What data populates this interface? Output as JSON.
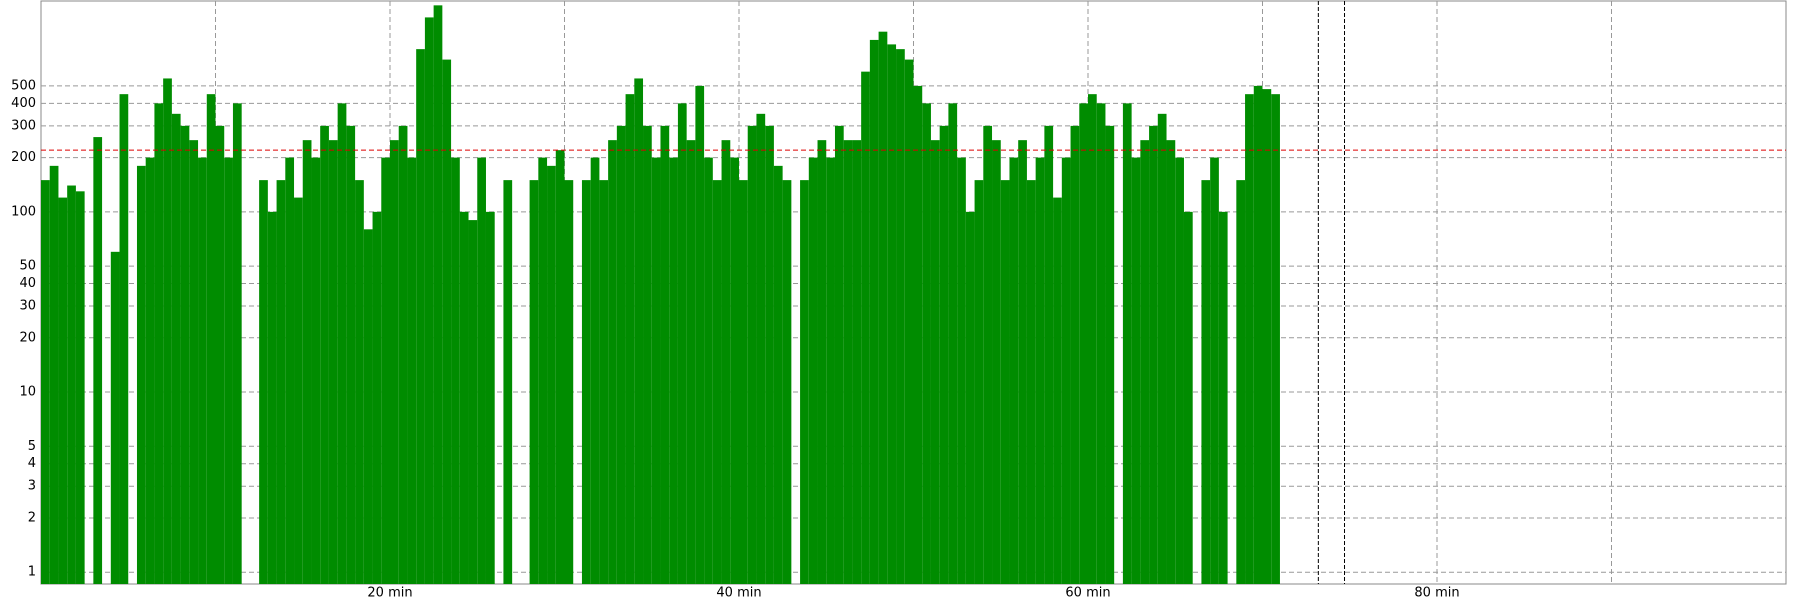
{
  "chart_data": {
    "type": "bar",
    "color": "#008c00",
    "log_scale": true,
    "grid": true,
    "xlim": [
      0,
      100
    ],
    "ylim": [
      0.86,
      1480
    ],
    "xticks": [
      {
        "value": 20,
        "label": "20 min"
      },
      {
        "value": 40,
        "label": "40 min"
      },
      {
        "value": 60,
        "label": "60 min"
      },
      {
        "value": 80,
        "label": "80 min"
      }
    ],
    "x_minor_gridlines": [
      10,
      30,
      50,
      70,
      90
    ],
    "yticks": [
      1,
      2,
      3,
      4,
      5,
      10,
      20,
      30,
      40,
      50,
      100,
      200,
      300,
      400,
      500
    ],
    "threshold": 220,
    "threshold_color": "#dd0000",
    "markers": [
      73.2,
      74.7
    ],
    "x": [
      0,
      0.5,
      1,
      1.5,
      2,
      2.5,
      3,
      3.5,
      4,
      4.5,
      5,
      5.5,
      6,
      6.5,
      7,
      7.5,
      8,
      8.5,
      9,
      9.5,
      10,
      10.5,
      11,
      11.5,
      12,
      12.5,
      13,
      13.5,
      14,
      14.5,
      15,
      15.5,
      16,
      16.5,
      17,
      17.5,
      18,
      18.5,
      19,
      19.5,
      20,
      20.5,
      21,
      21.5,
      22,
      22.5,
      23,
      23.5,
      24,
      24.5,
      25,
      25.5,
      26,
      26.5,
      27,
      27.5,
      28,
      28.5,
      29,
      29.5,
      30,
      30.5,
      31,
      31.5,
      32,
      32.5,
      33,
      33.5,
      34,
      34.5,
      35,
      35.5,
      36,
      36.5,
      37,
      37.5,
      38,
      38.5,
      39,
      39.5,
      40,
      40.5,
      41,
      41.5,
      42,
      42.5,
      43,
      43.5,
      44,
      44.5,
      45,
      45.5,
      46,
      46.5,
      47,
      47.5,
      48,
      48.5,
      49,
      49.5,
      50,
      50.5,
      51,
      51.5,
      52,
      52.5,
      53,
      53.5,
      54,
      54.5,
      55,
      55.5,
      56,
      56.5,
      57,
      57.5,
      58,
      58.5,
      59,
      59.5,
      60,
      60.5,
      61,
      61.5,
      62,
      62.5,
      63,
      63.5,
      64,
      64.5,
      65,
      65.5,
      66,
      66.5,
      67,
      67.5,
      68,
      68.5,
      69,
      69.5,
      70,
      70.5
    ],
    "values": [
      150,
      180,
      120,
      140,
      130,
      null,
      260,
      null,
      60,
      450,
      null,
      180,
      200,
      400,
      550,
      350,
      300,
      250,
      200,
      450,
      300,
      200,
      400,
      null,
      null,
      150,
      100,
      150,
      200,
      120,
      250,
      200,
      300,
      250,
      400,
      300,
      150,
      80,
      100,
      200,
      250,
      300,
      200,
      800,
      1200,
      1400,
      700,
      200,
      100,
      90,
      200,
      100,
      null,
      150,
      null,
      null,
      150,
      200,
      180,
      220,
      150,
      null,
      150,
      200,
      150,
      250,
      300,
      450,
      550,
      300,
      200,
      300,
      200,
      400,
      250,
      500,
      200,
      150,
      250,
      200,
      150,
      300,
      350,
      300,
      180,
      150,
      null,
      150,
      200,
      250,
      200,
      300,
      250,
      250,
      600,
      900,
      1000,
      850,
      800,
      700,
      500,
      400,
      250,
      300,
      400,
      200,
      100,
      150,
      300,
      250,
      150,
      200,
      250,
      150,
      200,
      300,
      120,
      200,
      300,
      400,
      450,
      400,
      300,
      null,
      400,
      200,
      250,
      300,
      350,
      250,
      200,
      100,
      null,
      150,
      200,
      100,
      null,
      150,
      450,
      500,
      480,
      450
    ]
  }
}
